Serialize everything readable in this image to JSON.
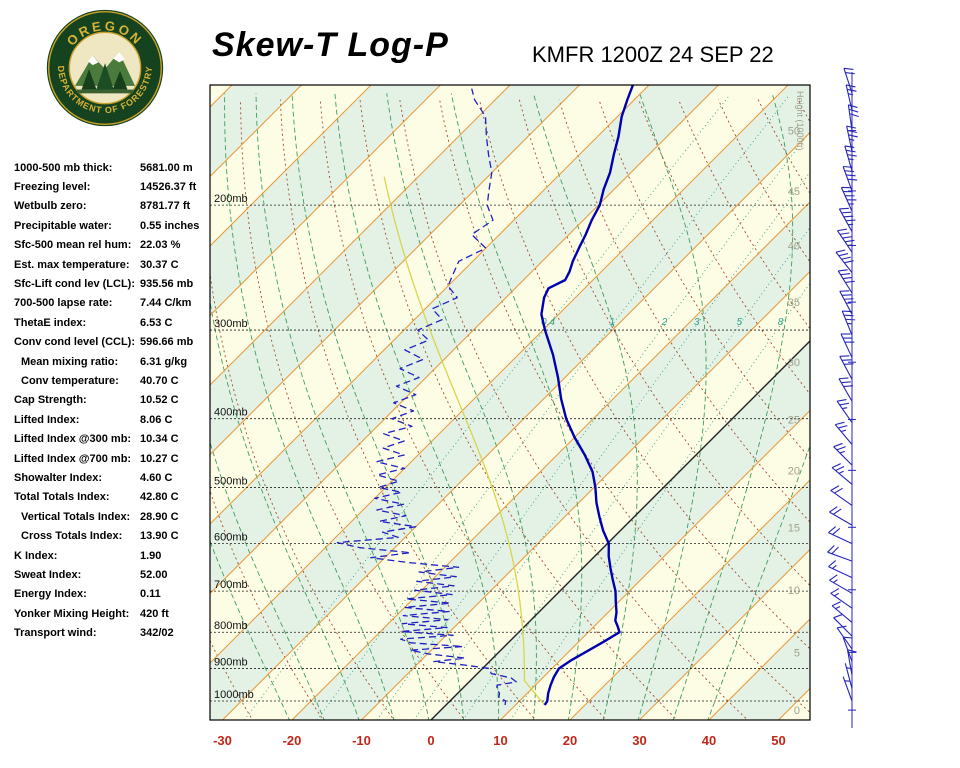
{
  "header": {
    "title": "Skew-T Log-P",
    "station": "KMFR 1200Z 24 SEP 22"
  },
  "logo": {
    "top_text": "OREGON",
    "bottom_text": "DEPARTMENT OF FORESTRY"
  },
  "indices": [
    {
      "label": "1000-500 mb thick:",
      "value": "5681.00 m"
    },
    {
      "label": "Freezing level:",
      "value": "14526.37 ft"
    },
    {
      "label": "Wetbulb zero:",
      "value": "8781.77 ft"
    },
    {
      "label": "Precipitable water:",
      "value": "0.55 inches"
    },
    {
      "label": "Sfc-500 mean rel hum:",
      "value": "22.03 %"
    },
    {
      "label": "Est. max temperature:",
      "value": "30.37 C"
    },
    {
      "label": "Sfc-Lift cond lev (LCL):",
      "value": "935.56 mb"
    },
    {
      "label": "700-500 lapse rate:",
      "value": "7.44 C/km"
    },
    {
      "label": "ThetaE index:",
      "value": "6.53 C"
    },
    {
      "label": "Conv cond level (CCL):",
      "value": "596.66 mb"
    },
    {
      "label": "Mean mixing ratio:",
      "value": "6.31 g/kg",
      "indent": true
    },
    {
      "label": "Conv temperature:",
      "value": "40.70 C",
      "indent": true
    },
    {
      "label": "Cap Strength:",
      "value": "10.52 C"
    },
    {
      "label": "Lifted Index:",
      "value": "8.06 C"
    },
    {
      "label": "Lifted Index @300 mb:",
      "value": "10.34 C"
    },
    {
      "label": "Lifted Index @700 mb:",
      "value": "10.27 C"
    },
    {
      "label": "Showalter Index:",
      "value": "4.60 C"
    },
    {
      "label": "Total Totals Index:",
      "value": "42.80 C"
    },
    {
      "label": "Vertical Totals Index:",
      "value": "28.90 C",
      "indent": true
    },
    {
      "label": "Cross Totals Index:",
      "value": "13.90 C",
      "indent": true
    },
    {
      "label": "K Index:",
      "value": "1.90"
    },
    {
      "label": "Sweat Index:",
      "value": "52.00"
    },
    {
      "label": "Energy Index:",
      "value": "0.11"
    },
    {
      "label": "Yonker Mixing Height:",
      "value": "420 ft"
    },
    {
      "label": "Transport wind:",
      "value": "342/02"
    }
  ],
  "chart_data": {
    "type": "skewt-log-p",
    "title": "Skew-T Log-P",
    "station_time": "KMFR 1200Z 24 SEP 22",
    "pressure_axis_mb": [
      200,
      300,
      400,
      500,
      600,
      700,
      800,
      900,
      1000
    ],
    "pressure_label_suffix": "mb",
    "temp_axis_c": [
      -30,
      -20,
      -10,
      0,
      10,
      20,
      30,
      40,
      50
    ],
    "height_axis": {
      "label": "Height (1000ft)",
      "ticks": [
        [
          "50",
          157
        ],
        [
          "45",
          191
        ],
        [
          "40",
          228
        ],
        [
          "35",
          274
        ],
        [
          "30",
          333
        ],
        [
          "25",
          401
        ],
        [
          "20",
          473
        ],
        [
          "15",
          569
        ],
        [
          "10",
          697
        ],
        [
          "5",
          854
        ],
        [
          "0",
          1030
        ]
      ]
    },
    "mixing_ratio_lines_gkg": [
      0.4,
      1,
      2,
      3,
      5,
      8
    ],
    "isotherm_step_c": 10,
    "dry_adiabats_c": {
      "min": -30,
      "max": 150,
      "step": 10
    },
    "moist_adiabats_c": {
      "min": -20,
      "max": 40,
      "step": 5
    },
    "temperature_profile": [
      [
        1013,
        14.2
      ],
      [
        1000,
        14
      ],
      [
        975,
        13
      ],
      [
        950,
        12.2
      ],
      [
        925,
        11.5
      ],
      [
        900,
        11
      ],
      [
        875,
        11.6
      ],
      [
        850,
        12.6
      ],
      [
        825,
        13.6
      ],
      [
        800,
        14.5
      ],
      [
        785,
        13.4
      ],
      [
        770,
        12.2
      ],
      [
        750,
        11.2
      ],
      [
        725,
        9.6
      ],
      [
        700,
        8
      ],
      [
        675,
        6
      ],
      [
        650,
        4
      ],
      [
        625,
        2
      ],
      [
        600,
        0.2
      ],
      [
        575,
        -2.5
      ],
      [
        550,
        -5
      ],
      [
        525,
        -7.5
      ],
      [
        500,
        -9.8
      ],
      [
        475,
        -12.5
      ],
      [
        450,
        -16
      ],
      [
        425,
        -20
      ],
      [
        400,
        -23.9
      ],
      [
        375,
        -27.5
      ],
      [
        350,
        -31
      ],
      [
        325,
        -35
      ],
      [
        300,
        -39.7
      ],
      [
        285,
        -42.5
      ],
      [
        270,
        -44.5
      ],
      [
        262,
        -45.2
      ],
      [
        255,
        -44
      ],
      [
        248,
        -44.6
      ],
      [
        240,
        -45.6
      ],
      [
        230,
        -46.6
      ],
      [
        220,
        -47.6
      ],
      [
        210,
        -48.8
      ],
      [
        200,
        -49.8
      ],
      [
        190,
        -51.5
      ],
      [
        180,
        -53
      ],
      [
        170,
        -55
      ],
      [
        160,
        -57
      ],
      [
        150,
        -59.4
      ],
      [
        142,
        -61
      ],
      [
        135,
        -62.4
      ]
    ],
    "dewpoint_profile": [
      [
        1013,
        8.5
      ],
      [
        1000,
        8
      ],
      [
        988,
        6.5
      ],
      [
        975,
        6
      ],
      [
        962,
        5
      ],
      [
        950,
        4.5
      ],
      [
        940,
        6.8
      ],
      [
        928,
        5.5
      ],
      [
        915,
        2
      ],
      [
        900,
        1
      ],
      [
        890,
        -3
      ],
      [
        880,
        -8
      ],
      [
        870,
        -4
      ],
      [
        858,
        -10
      ],
      [
        848,
        -13
      ],
      [
        838,
        -6
      ],
      [
        828,
        -14
      ],
      [
        818,
        -16
      ],
      [
        808,
        -9
      ],
      [
        798,
        -17
      ],
      [
        788,
        -11
      ],
      [
        778,
        -18
      ],
      [
        768,
        -12
      ],
      [
        758,
        -19
      ],
      [
        748,
        -13
      ],
      [
        738,
        -20
      ],
      [
        728,
        -14
      ],
      [
        718,
        -21
      ],
      [
        708,
        -15
      ],
      [
        698,
        -21
      ],
      [
        688,
        -16
      ],
      [
        678,
        -22
      ],
      [
        668,
        -17
      ],
      [
        658,
        -23
      ],
      [
        648,
        -18
      ],
      [
        638,
        -26
      ],
      [
        628,
        -32
      ],
      [
        618,
        -27
      ],
      [
        608,
        -35
      ],
      [
        598,
        -39
      ],
      [
        588,
        -31
      ],
      [
        578,
        -34
      ],
      [
        568,
        -30
      ],
      [
        558,
        -36
      ],
      [
        548,
        -33
      ],
      [
        538,
        -38
      ],
      [
        528,
        -35
      ],
      [
        518,
        -40
      ],
      [
        508,
        -37
      ],
      [
        500,
        -41
      ],
      [
        490,
        -39
      ],
      [
        480,
        -43
      ],
      [
        470,
        -40
      ],
      [
        460,
        -45
      ],
      [
        450,
        -42
      ],
      [
        440,
        -46
      ],
      [
        430,
        -44
      ],
      [
        420,
        -48
      ],
      [
        410,
        -45
      ],
      [
        400,
        -49
      ],
      [
        390,
        -47
      ],
      [
        380,
        -51
      ],
      [
        370,
        -49
      ],
      [
        360,
        -53
      ],
      [
        350,
        -51
      ],
      [
        340,
        -55
      ],
      [
        330,
        -53
      ],
      [
        320,
        -57
      ],
      [
        310,
        -55
      ],
      [
        300,
        -58
      ],
      [
        290,
        -56
      ],
      [
        280,
        -59
      ],
      [
        270,
        -57
      ],
      [
        260,
        -60
      ],
      [
        250,
        -61
      ],
      [
        240,
        -62
      ],
      [
        230,
        -60
      ],
      [
        220,
        -64
      ],
      [
        210,
        -63
      ],
      [
        200,
        -66
      ],
      [
        190,
        -68
      ],
      [
        180,
        -70
      ],
      [
        170,
        -73
      ],
      [
        160,
        -76
      ],
      [
        150,
        -79
      ],
      [
        142,
        -83
      ],
      [
        137,
        -85
      ]
    ],
    "parcel": {
      "surface_p": 1013,
      "surface_t": 14.2,
      "lcl_p": 935.56,
      "top_p": 180
    },
    "wind_barbs": [
      [
        1000,
        340,
        5
      ],
      [
        960,
        345,
        5
      ],
      [
        920,
        350,
        10
      ],
      [
        880,
        340,
        10
      ],
      [
        845,
        325,
        10
      ],
      [
        810,
        315,
        10
      ],
      [
        775,
        310,
        15
      ],
      [
        740,
        305,
        15
      ],
      [
        705,
        300,
        15
      ],
      [
        670,
        295,
        15
      ],
      [
        635,
        290,
        20
      ],
      [
        600,
        295,
        20
      ],
      [
        565,
        300,
        20
      ],
      [
        530,
        305,
        20
      ],
      [
        495,
        310,
        25
      ],
      [
        465,
        315,
        25
      ],
      [
        435,
        320,
        25
      ],
      [
        405,
        325,
        25
      ],
      [
        378,
        330,
        30
      ],
      [
        352,
        332,
        30
      ],
      [
        328,
        335,
        30
      ],
      [
        305,
        338,
        35
      ],
      [
        285,
        332,
        35
      ],
      [
        266,
        328,
        40
      ],
      [
        249,
        322,
        40
      ],
      [
        233,
        326,
        45
      ],
      [
        218,
        331,
        45
      ],
      [
        204,
        336,
        45
      ],
      [
        191,
        340,
        40
      ],
      [
        179,
        344,
        35
      ],
      [
        168,
        348,
        35
      ],
      [
        157,
        352,
        30
      ],
      [
        147,
        347,
        25
      ],
      [
        139,
        342,
        20
      ]
    ],
    "colors": {
      "temperature": "#0000B0",
      "dewpoint": "#2020C0",
      "parcel": "#D8D44E",
      "isotherm": "#E89838",
      "zero_isotherm": "#222222",
      "dry_adiabat": "#A34A2A",
      "moist_adiabat": "#3F9E59",
      "mixing_ratio": "#2FA08C",
      "band_green": "#E4F2E6",
      "band_cream": "#FDFDE6",
      "pressure_line": "#222222",
      "temp_label": "#C22618",
      "height_label": "#A0A08C",
      "wind_barb": "#2525BB",
      "border": "#000000"
    }
  }
}
